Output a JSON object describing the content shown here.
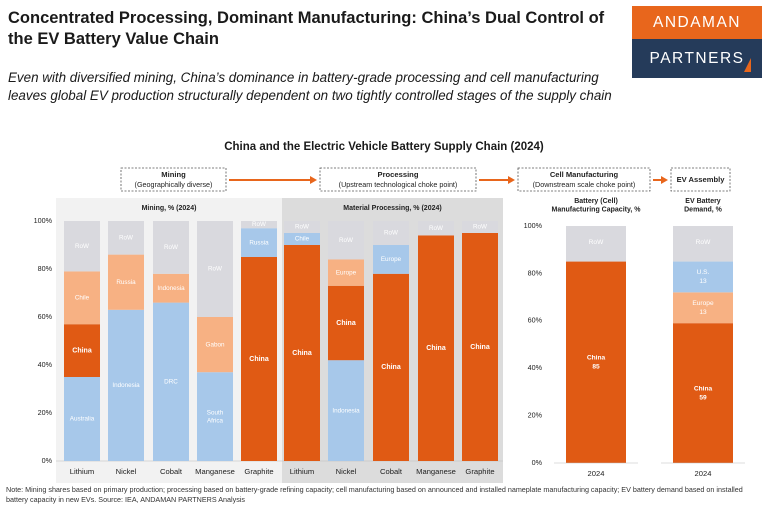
{
  "header": {
    "title": "Concentrated Processing, Dominant Manufacturing: China’s Dual Control of the EV Battery Value Chain",
    "subtitle": "Even with diversified mining, China’s dominance in battery-grade processing and cell manufacturing leaves global EV production structurally dependent on two tightly controlled stages of the supply chain"
  },
  "logo": {
    "line1": "ANDAMAN",
    "line2": "PARTNERS"
  },
  "colors": {
    "china": "#e05a14",
    "orange_light": "#f7b183",
    "blue": "#a7c8ea",
    "grey": "#d9d9de",
    "arrow": "#e8661c",
    "panel_mining": "#f2f2f2",
    "panel_processing": "#dcdcdc"
  },
  "stages": [
    {
      "title": "Mining",
      "sub": "(Geographically diverse)"
    },
    {
      "title": "Processing",
      "sub": "(Upstream technological choke point)"
    },
    {
      "title": "Cell Manufacturing",
      "sub": "(Downstream scale choke point)"
    },
    {
      "title": "EV Assembly",
      "sub": ""
    }
  ],
  "note": "Note: Mining shares based on primary production; processing based on battery-grade refining capacity; cell manufacturing based on announced and installed nameplate manufacturing capacity; EV battery demand based on installed battery capacity in new EVs. Source: IEA, ANDAMAN PARTNERS Analysis",
  "chart_data": [
    {
      "type": "bar",
      "stacked": true,
      "title": "China and the Electric Vehicle Battery Supply Chain (2024)",
      "ylim": [
        0,
        100
      ],
      "yticks": [
        "0%",
        "20%",
        "40%",
        "60%",
        "80%",
        "100%"
      ],
      "panels": [
        {
          "title": "Mining, % (2024)",
          "bars": [
            {
              "category": "Lithium",
              "segments": [
                {
                  "label": "Australia",
                  "value": 35,
                  "color": "blue"
                },
                {
                  "label": "China",
                  "value": 22,
                  "color": "china"
                },
                {
                  "label": "Chile",
                  "value": 22,
                  "color": "orange_light"
                },
                {
                  "label": "RoW",
                  "value": 21,
                  "color": "grey"
                }
              ]
            },
            {
              "category": "Nickel",
              "segments": [
                {
                  "label": "Indonesia",
                  "value": 63,
                  "color": "blue"
                },
                {
                  "label": "Russia",
                  "value": 23,
                  "color": "orange_light"
                },
                {
                  "label": "RoW",
                  "value": 14,
                  "color": "grey"
                }
              ]
            },
            {
              "category": "Cobalt",
              "segments": [
                {
                  "label": "DRC",
                  "value": 66,
                  "color": "blue"
                },
                {
                  "label": "Indonesia",
                  "value": 12,
                  "color": "orange_light"
                },
                {
                  "label": "RoW",
                  "value": 22,
                  "color": "grey"
                }
              ]
            },
            {
              "category": "Manganese",
              "segments": [
                {
                  "label": "South Africa",
                  "value": 37,
                  "color": "blue"
                },
                {
                  "label": "Gabon",
                  "value": 23,
                  "color": "orange_light"
                },
                {
                  "label": "RoW",
                  "value": 40,
                  "color": "grey"
                }
              ]
            },
            {
              "category": "Graphite",
              "segments": [
                {
                  "label": "China",
                  "value": 85,
                  "color": "china"
                },
                {
                  "label": "Russia",
                  "value": 12,
                  "color": "blue"
                },
                {
                  "label": "RoW",
                  "value": 3,
                  "color": "grey"
                }
              ]
            }
          ]
        },
        {
          "title": "Material Processing, % (2024)",
          "bars": [
            {
              "category": "Lithium",
              "segments": [
                {
                  "label": "China",
                  "value": 90,
                  "color": "china"
                },
                {
                  "label": "Chile",
                  "value": 5,
                  "color": "blue"
                },
                {
                  "label": "RoW",
                  "value": 5,
                  "color": "grey"
                }
              ]
            },
            {
              "category": "Nickel",
              "segments": [
                {
                  "label": "Indonesia",
                  "value": 42,
                  "color": "blue"
                },
                {
                  "label": "China",
                  "value": 31,
                  "color": "china"
                },
                {
                  "label": "Europe",
                  "value": 11,
                  "color": "orange_light"
                },
                {
                  "label": "RoW",
                  "value": 16,
                  "color": "grey"
                }
              ]
            },
            {
              "category": "Cobalt",
              "segments": [
                {
                  "label": "China",
                  "value": 78,
                  "color": "china"
                },
                {
                  "label": "Europe",
                  "value": 12,
                  "color": "blue"
                },
                {
                  "label": "RoW",
                  "value": 10,
                  "color": "grey"
                }
              ]
            },
            {
              "category": "Manganese",
              "segments": [
                {
                  "label": "China",
                  "value": 94,
                  "color": "china"
                },
                {
                  "label": "RoW",
                  "value": 6,
                  "color": "grey"
                }
              ]
            },
            {
              "category": "Graphite",
              "segments": [
                {
                  "label": "China",
                  "value": 95,
                  "color": "china"
                },
                {
                  "label": "RoW",
                  "value": 5,
                  "color": "grey"
                }
              ]
            }
          ]
        }
      ]
    },
    {
      "type": "bar",
      "stacked": true,
      "title": "Battery (Cell) Manufacturing Capacity, %",
      "ylim": [
        0,
        100
      ],
      "yticks": [
        "0%",
        "20%",
        "40%",
        "60%",
        "80%",
        "100%"
      ],
      "categories": [
        "2024"
      ],
      "segments": [
        {
          "label": "China",
          "value": 85,
          "color": "china",
          "value_label": "85"
        },
        {
          "label": "RoW",
          "value": 15,
          "color": "grey"
        }
      ]
    },
    {
      "type": "bar",
      "stacked": true,
      "title": "EV Battery Demand, %",
      "ylim": [
        0,
        100
      ],
      "categories": [
        "2024"
      ],
      "segments": [
        {
          "label": "China",
          "value": 59,
          "color": "china",
          "value_label": "59"
        },
        {
          "label": "Europe",
          "value": 13,
          "color": "orange_light",
          "value_label": "13"
        },
        {
          "label": "U.S.",
          "value": 13,
          "color": "blue",
          "value_label": "13"
        },
        {
          "label": "RoW",
          "value": 15,
          "color": "grey"
        }
      ]
    }
  ]
}
